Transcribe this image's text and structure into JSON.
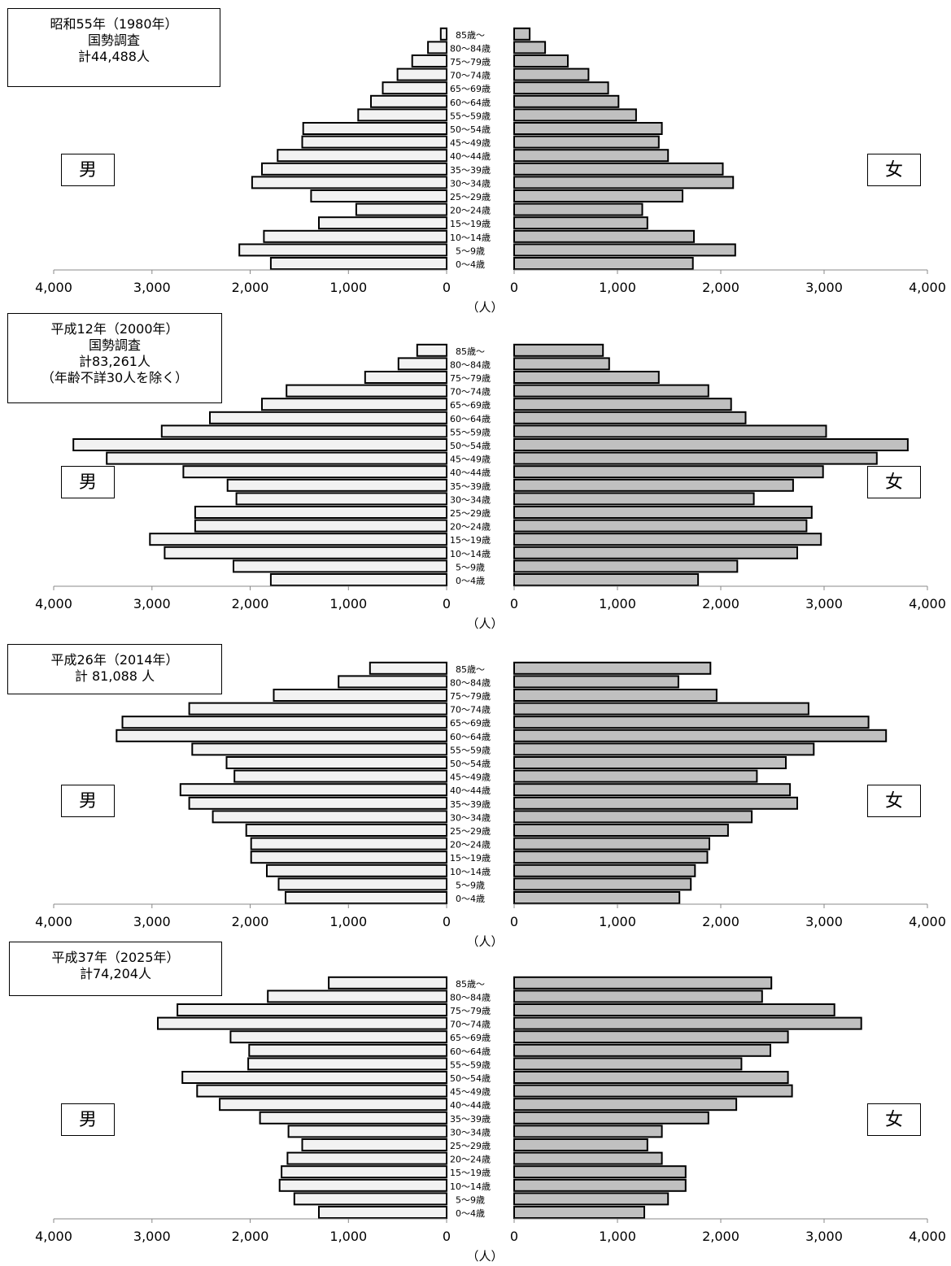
{
  "unit_label": "（人）",
  "male_label": "男",
  "female_label": "女",
  "colors": {
    "male_bar": "#f2f2f2",
    "female_bar": "#c0c0c0",
    "stroke": "#000000"
  },
  "chart_data": [
    {
      "type": "bar",
      "orientation": "horizontal-pyramid",
      "title_lines": [
        "昭和55年（1980年）",
        "国勢調査",
        "計44,488人"
      ],
      "categories": [
        "0～4歳",
        "5～9歳",
        "10～14歳",
        "15～19歳",
        "20～24歳",
        "25～29歳",
        "30～34歳",
        "35～39歳",
        "40～44歳",
        "45～49歳",
        "50～54歳",
        "55～59歳",
        "60～64歳",
        "65～69歳",
        "70～74歳",
        "75～79歳",
        "80～84歳",
        "85歳～"
      ],
      "xlim": [
        0,
        4000
      ],
      "ticks": [
        "0",
        "1,000",
        "2,000",
        "3,000",
        "4,000"
      ],
      "series": [
        {
          "name": "男",
          "values": [
            1790,
            2110,
            1860,
            1300,
            920,
            1380,
            1980,
            1880,
            1720,
            1470,
            1460,
            900,
            770,
            650,
            500,
            350,
            190,
            60
          ]
        },
        {
          "name": "女",
          "values": [
            1730,
            2140,
            1740,
            1290,
            1240,
            1630,
            2120,
            2020,
            1490,
            1400,
            1430,
            1180,
            1010,
            910,
            720,
            520,
            300,
            150
          ]
        }
      ]
    },
    {
      "type": "bar",
      "orientation": "horizontal-pyramid",
      "title_lines": [
        "平成12年（2000年）",
        "国勢調査",
        "計83,261人",
        "（年齢不詳30人を除く）"
      ],
      "categories": [
        "0～4歳",
        "5～9歳",
        "10～14歳",
        "15～19歳",
        "20～24歳",
        "25～29歳",
        "30～34歳",
        "35～39歳",
        "40～44歳",
        "45～49歳",
        "50～54歳",
        "55～59歳",
        "60～64歳",
        "65～69歳",
        "70～74歳",
        "75～79歳",
        "80～84歳",
        "85歳～"
      ],
      "xlim": [
        0,
        4000
      ],
      "ticks": [
        "0",
        "1,000",
        "2,000",
        "3,000",
        "4,000"
      ],
      "series": [
        {
          "name": "男",
          "values": [
            1790,
            2170,
            2870,
            3020,
            2560,
            2560,
            2140,
            2230,
            2680,
            3460,
            3800,
            2900,
            2410,
            1880,
            1630,
            830,
            490,
            300
          ]
        },
        {
          "name": "女",
          "values": [
            1780,
            2160,
            2740,
            2970,
            2830,
            2880,
            2320,
            2700,
            2990,
            3510,
            3810,
            3020,
            2240,
            2100,
            1880,
            1400,
            920,
            860
          ]
        }
      ]
    },
    {
      "type": "bar",
      "orientation": "horizontal-pyramid",
      "title_lines": [
        "平成26年（2014年）",
        "計 81,088 人"
      ],
      "categories": [
        "0～4歳",
        "5～9歳",
        "10～14歳",
        "15～19歳",
        "20～24歳",
        "25～29歳",
        "30～34歳",
        "35～39歳",
        "40～44歳",
        "45～49歳",
        "50～54歳",
        "55～59歳",
        "60～64歳",
        "65～69歳",
        "70～74歳",
        "75～79歳",
        "80～84歳",
        "85歳～"
      ],
      "xlim": [
        0,
        4000
      ],
      "ticks": [
        "0",
        "1,000",
        "2,000",
        "3,000",
        "4,000"
      ],
      "series": [
        {
          "name": "男",
          "values": [
            1640,
            1710,
            1830,
            1990,
            1990,
            2040,
            2380,
            2620,
            2710,
            2160,
            2240,
            2590,
            3360,
            3300,
            2620,
            1760,
            1100,
            780
          ]
        },
        {
          "name": "女",
          "values": [
            1600,
            1710,
            1750,
            1870,
            1890,
            2070,
            2300,
            2740,
            2670,
            2350,
            2630,
            2900,
            3600,
            3430,
            2850,
            1960,
            1590,
            1900
          ]
        }
      ]
    },
    {
      "type": "bar",
      "orientation": "horizontal-pyramid",
      "title_lines": [
        "平成37年（2025年）",
        "計74,204人"
      ],
      "categories": [
        "0～4歳",
        "5～9歳",
        "10～14歳",
        "15～19歳",
        "20～24歳",
        "25～29歳",
        "30～34歳",
        "35～39歳",
        "40～44歳",
        "45～49歳",
        "50～54歳",
        "55～59歳",
        "60～64歳",
        "65～69歳",
        "70～74歳",
        "75～79歳",
        "80～84歳",
        "85歳～"
      ],
      "xlim": [
        0,
        4000
      ],
      "ticks": [
        "0",
        "1,000",
        "2,000",
        "3,000",
        "4,000"
      ],
      "series": [
        {
          "name": "男",
          "values": [
            1300,
            1550,
            1700,
            1680,
            1620,
            1470,
            1610,
            1900,
            2310,
            2540,
            2690,
            2020,
            2010,
            2200,
            2940,
            2740,
            1820,
            1200
          ]
        },
        {
          "name": "女",
          "values": [
            1260,
            1490,
            1660,
            1660,
            1430,
            1290,
            1430,
            1880,
            2150,
            2690,
            2650,
            2200,
            2480,
            2650,
            3360,
            3100,
            2400,
            2490
          ]
        }
      ]
    }
  ]
}
